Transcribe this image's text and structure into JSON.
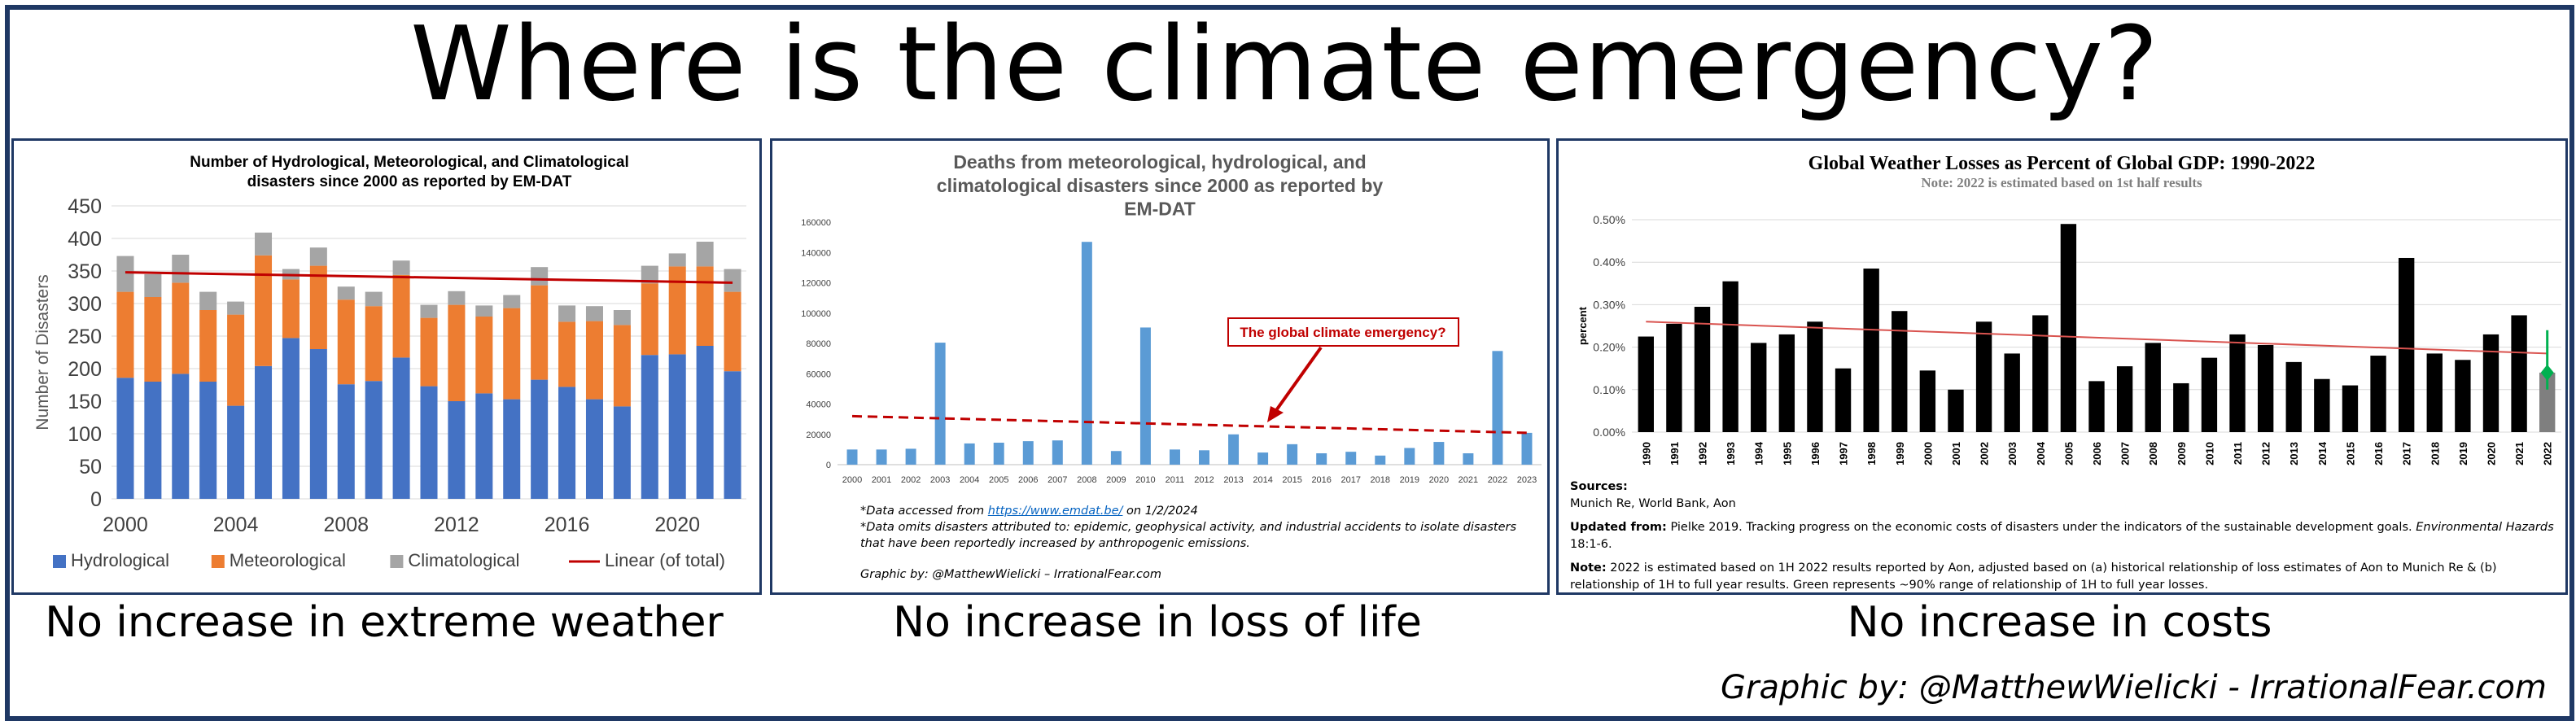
{
  "page": {
    "title": "Where is the climate emergency?",
    "credit": "Graphic by: @MatthewWielicki - IrrationalFear.com",
    "captions": [
      "No increase in extreme weather",
      "No increase in loss of life",
      "No increase in costs"
    ]
  },
  "panel2_notes": {
    "line1_prefix": "*Data accessed from ",
    "line1_link": "https://www.emdat.be/",
    "line1_suffix": " on 1/2/2024",
    "line2": "*Data omits disasters attributed to: epidemic, geophysical activity, and industrial accidents to isolate disasters that have been reportedly increased by anthropogenic emissions.",
    "credit": "Graphic by: @MatthewWielicki – IrrationalFear.com"
  },
  "panel3_notes": {
    "sources_label": "Sources:",
    "sources": "Munich Re,  World Bank,  Aon",
    "updated_label": "Updated from:",
    "updated_text": " Pielke 2019. Tracking progress on the economic costs of disasters under the indicators of the sustainable development goals. ",
    "updated_journal": "Environmental Hazards",
    "updated_tail": " 18:1-6.",
    "note_label": "Note:",
    "note_text": " 2022 is estimated based on 1H 2022 results reported by Aon, adjusted based on (a) historical relationship of loss estimates of Aon to Munich Re & (b) relationship of 1H to full year results. Green represents ~90% range of relationship of 1H to full year losses."
  },
  "chart_data": [
    {
      "type": "bar",
      "stacked": true,
      "title": "Number of Hydrological, Meteorological, and Climatological disasters since 2000 as reported by EM-DAT",
      "ylabel": "Number of Disasters",
      "ylim": [
        0,
        450
      ],
      "yticks": [
        0,
        50,
        100,
        150,
        200,
        250,
        300,
        350,
        400,
        450
      ],
      "xticks": [
        "2000",
        "2004",
        "2008",
        "2012",
        "2016",
        "2020"
      ],
      "categories": [
        "2000",
        "2001",
        "2002",
        "2003",
        "2004",
        "2005",
        "2006",
        "2007",
        "2008",
        "2009",
        "2010",
        "2011",
        "2012",
        "2013",
        "2014",
        "2015",
        "2016",
        "2017",
        "2018",
        "2019",
        "2020",
        "2021",
        "2022"
      ],
      "series": [
        {
          "name": "Hydrological",
          "color": "#4472c4",
          "values": [
            186,
            180,
            192,
            180,
            143,
            204,
            247,
            230,
            176,
            181,
            217,
            173,
            150,
            162,
            153,
            183,
            172,
            153,
            142,
            221,
            222,
            235,
            196
          ]
        },
        {
          "name": "Meteorological",
          "color": "#ed7d31",
          "values": [
            132,
            130,
            140,
            110,
            140,
            170,
            90,
            128,
            130,
            115,
            127,
            105,
            148,
            118,
            140,
            145,
            100,
            120,
            125,
            110,
            135,
            122,
            122
          ]
        },
        {
          "name": "Climatological",
          "color": "#a5a5a5",
          "values": [
            55,
            35,
            43,
            28,
            20,
            35,
            16,
            28,
            20,
            22,
            22,
            20,
            21,
            17,
            20,
            28,
            25,
            23,
            23,
            27,
            20,
            38,
            35
          ]
        }
      ],
      "trend": {
        "name": "Linear (of total)",
        "color": "#c00000",
        "start": 348,
        "end": 332
      },
      "legend": "bottom",
      "grid": true
    },
    {
      "type": "bar",
      "title": "Deaths from meteorological, hydrological, and climatological disasters since 2000 as reported by EM-DAT",
      "ylim": [
        0,
        160000
      ],
      "yticks": [
        0,
        20000,
        40000,
        60000,
        80000,
        100000,
        120000,
        140000,
        160000
      ],
      "categories": [
        "2000",
        "2001",
        "2002",
        "2003",
        "2004",
        "2005",
        "2006",
        "2007",
        "2008",
        "2009",
        "2010",
        "2011",
        "2012",
        "2013",
        "2014",
        "2015",
        "2016",
        "2017",
        "2018",
        "2019",
        "2020",
        "2021",
        "2022",
        "2023"
      ],
      "values": [
        10000,
        10000,
        10500,
        80500,
        14000,
        14500,
        15500,
        16000,
        147000,
        9000,
        90500,
        10000,
        9500,
        20000,
        8000,
        13500,
        7500,
        8500,
        6000,
        11000,
        15000,
        7500,
        75000,
        21000
      ],
      "color": "#5b9bd5",
      "trend": {
        "color": "#c00000",
        "start": 32000,
        "end": 21000,
        "style": "dashed"
      },
      "annotation": "The global climate emergency?",
      "grid": false
    },
    {
      "type": "bar",
      "title": "Global Weather Losses as Percent of Global GDP: 1990-2022",
      "subtitle": "Note: 2022 is estimated based on 1st half results",
      "ylabel": "percent",
      "ylim": [
        0,
        0.5
      ],
      "yticks": [
        "0.00%",
        "0.10%",
        "0.20%",
        "0.30%",
        "0.40%",
        "0.50%"
      ],
      "categories": [
        "1990",
        "1991",
        "1992",
        "1993",
        "1994",
        "1995",
        "1996",
        "1997",
        "1998",
        "1999",
        "2000",
        "2001",
        "2002",
        "2003",
        "2004",
        "2005",
        "2006",
        "2007",
        "2008",
        "2009",
        "2010",
        "2011",
        "2012",
        "2013",
        "2014",
        "2015",
        "2016",
        "2017",
        "2018",
        "2019",
        "2020",
        "2021",
        "2022"
      ],
      "values": [
        0.225,
        0.255,
        0.295,
        0.355,
        0.21,
        0.23,
        0.26,
        0.15,
        0.385,
        0.285,
        0.145,
        0.1,
        0.26,
        0.185,
        0.275,
        0.49,
        0.12,
        0.155,
        0.21,
        0.115,
        0.175,
        0.23,
        0.205,
        0.165,
        0.125,
        0.11,
        0.18,
        0.41,
        0.185,
        0.17,
        0.23,
        0.275,
        0.14
      ],
      "color": "#000000",
      "estimate_color": "#7f7f7f",
      "range_2022": {
        "low": 0.1,
        "high": 0.24,
        "color": "#00b050"
      },
      "trend": {
        "color": "#d9534f",
        "start": 0.26,
        "end": 0.185
      },
      "grid": true
    }
  ]
}
